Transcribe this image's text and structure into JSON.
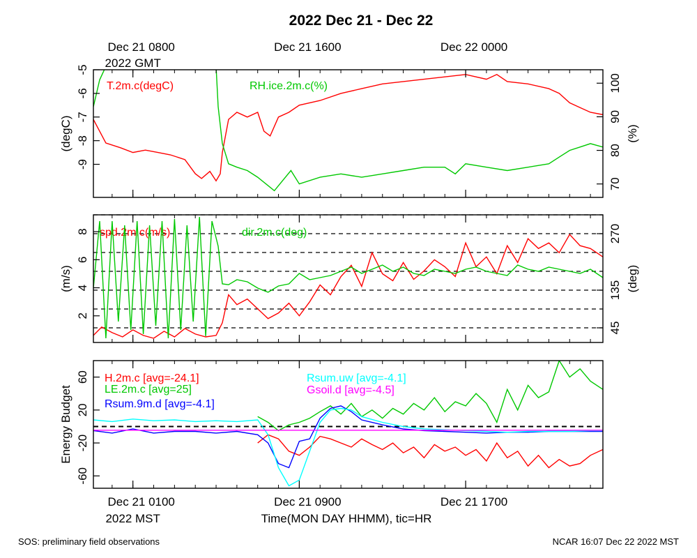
{
  "title": "2022 Dec 21 - Dec 22",
  "top_time_axis": {
    "ticks": [
      {
        "line1": "Dec 21 0800",
        "line2": "2022 GMT",
        "hour": 0
      },
      {
        "line1": "Dec 21 1600",
        "line2": "",
        "hour": 8
      },
      {
        "line1": "Dec 22 0000",
        "line2": "",
        "hour": 16
      }
    ]
  },
  "bottom_time_axis": {
    "ticks": [
      {
        "line1": "Dec 21 0100",
        "line2": "2022 MST",
        "hour": 0
      },
      {
        "line1": "Dec 21 0900",
        "line2": "",
        "hour": 8
      },
      {
        "line1": "Dec 21 1700",
        "line2": "",
        "hour": 16
      }
    ],
    "xlabel": "Time(MON DAY HHMM), tic=HR"
  },
  "footer": {
    "left": "SOS: preliminary field observations",
    "right": "NCAR 16:07 Dec 22 2022 MST"
  },
  "colors": {
    "red": "#ff0000",
    "green": "#00c800",
    "blue": "#0000ff",
    "cyan": "#00ffff",
    "magenta": "#ff00ff",
    "black": "#000000"
  },
  "chart_data": [
    {
      "type": "line",
      "panel": "temperature-humidity",
      "xlim_hours": [
        -1.9,
        22.6
      ],
      "left_axis": {
        "ylabel": "(degC)",
        "ylim": [
          -10.4,
          -5
        ],
        "ticks": [
          -9,
          -8,
          -7,
          -6,
          -5
        ]
      },
      "right_axis": {
        "ylabel": "(%)",
        "ylim": [
          66,
          104
        ],
        "ticks": [
          70,
          80,
          90,
          100
        ]
      },
      "series": [
        {
          "name": "T.2m.c(degC)",
          "axis": "left",
          "color": "red",
          "x": [
            -1.9,
            -1.3,
            -0.6,
            0,
            0.6,
            1.2,
            1.8,
            2.5,
            3.0,
            3.3,
            3.7,
            4.0,
            4.2,
            4.3,
            4.6,
            5.0,
            5.5,
            6.0,
            6.3,
            6.6,
            7.0,
            7.5,
            8.0,
            9.0,
            10.0,
            11.0,
            12.0,
            13.0,
            14.0,
            15.0,
            16.0,
            17.0,
            17.5,
            18.0,
            19.0,
            20.0,
            20.5,
            21.0,
            21.5,
            22.0,
            22.6
          ],
          "y": [
            -7.1,
            -8.1,
            -8.3,
            -8.5,
            -8.4,
            -8.5,
            -8.6,
            -8.8,
            -9.4,
            -9.6,
            -9.3,
            -9.7,
            -9.4,
            -8.5,
            -7.1,
            -6.8,
            -7.0,
            -6.8,
            -7.6,
            -7.8,
            -7.0,
            -6.8,
            -6.5,
            -6.3,
            -6.0,
            -5.8,
            -5.6,
            -5.5,
            -5.4,
            -5.3,
            -5.2,
            -5.4,
            -5.2,
            -5.5,
            -5.6,
            -5.8,
            -6.0,
            -6.4,
            -6.6,
            -6.8,
            -6.9
          ]
        },
        {
          "name": "RH.ice.2m.c(%)",
          "axis": "right",
          "color": "green",
          "x": [
            -1.9,
            -1.6,
            -1.3,
            -1.0,
            0,
            1.0,
            2.0,
            3.0,
            4.0,
            4.1,
            4.3,
            4.6,
            5.0,
            5.5,
            6.0,
            6.4,
            6.8,
            7.2,
            7.6,
            8.0,
            9.0,
            10.0,
            11.0,
            12.0,
            13.0,
            14.0,
            15.0,
            15.5,
            16.0,
            17.0,
            18.0,
            19.0,
            20.0,
            20.5,
            21.0,
            21.5,
            22.0,
            22.6
          ],
          "y": [
            93,
            101,
            105,
            105,
            105,
            105,
            105,
            105,
            105,
            93,
            82,
            76,
            75,
            74,
            72,
            70,
            68,
            71,
            74,
            70,
            72,
            73,
            72,
            73,
            74,
            75,
            75,
            73,
            76,
            75,
            74,
            75,
            76,
            78,
            80,
            81,
            82,
            81
          ]
        }
      ]
    },
    {
      "type": "line",
      "panel": "wind",
      "xlim_hours": [
        -1.9,
        22.6
      ],
      "left_axis": {
        "ylabel": "(m/s)",
        "ylim": [
          0.1,
          9.2
        ],
        "ticks": [
          2,
          4,
          6,
          8
        ]
      },
      "right_axis": {
        "ylabel": "(deg)",
        "ylim": [
          10,
          315
        ],
        "ticks": [
          45,
          135,
          270
        ]
      },
      "hlines_right_units": [
        45,
        90,
        135,
        180,
        225,
        270,
        315
      ],
      "series": [
        {
          "name": "spd.2m.c(m/s)",
          "axis": "left",
          "color": "red",
          "x": [
            -1.9,
            -1.5,
            -1.0,
            -0.5,
            0,
            0.5,
            1.0,
            1.5,
            2.0,
            2.5,
            3.0,
            3.5,
            4.0,
            4.3,
            4.6,
            5.0,
            5.5,
            6.0,
            6.5,
            7.0,
            7.5,
            8.0,
            8.5,
            9.0,
            9.5,
            10.0,
            10.5,
            11.0,
            11.5,
            12.0,
            12.5,
            13.0,
            13.5,
            14.0,
            14.5,
            15.0,
            15.5,
            16.0,
            16.5,
            17.0,
            17.5,
            18.0,
            18.5,
            19.0,
            19.5,
            20.0,
            20.5,
            21.0,
            21.5,
            22.0,
            22.6
          ],
          "y": [
            0.6,
            1.2,
            0.8,
            0.5,
            1.0,
            0.6,
            0.4,
            0.9,
            0.5,
            1.1,
            0.7,
            0.5,
            0.6,
            1.5,
            3.5,
            2.8,
            3.2,
            2.5,
            1.8,
            2.2,
            2.9,
            2.0,
            3.0,
            4.2,
            3.5,
            4.8,
            5.6,
            4.1,
            6.5,
            5.0,
            4.5,
            5.8,
            4.6,
            5.2,
            6.0,
            5.5,
            4.8,
            7.2,
            5.5,
            6.2,
            5.0,
            7.0,
            5.8,
            7.5,
            6.8,
            7.2,
            6.5,
            7.8,
            7.0,
            6.8,
            6.2
          ]
        },
        {
          "name": "dir.2m.c(deg)",
          "axis": "right",
          "color": "green",
          "x": [
            -1.9,
            -1.6,
            -1.3,
            -1.0,
            -0.7,
            -0.4,
            -0.1,
            0.2,
            0.5,
            0.8,
            1.1,
            1.4,
            1.7,
            2.0,
            2.3,
            2.6,
            2.9,
            3.2,
            3.5,
            3.8,
            4.1,
            4.3,
            4.6,
            5.0,
            5.5,
            6.0,
            6.5,
            7.0,
            7.5,
            8.0,
            8.5,
            9.0,
            9.5,
            10.0,
            10.5,
            11.0,
            11.5,
            12.0,
            12.5,
            13.0,
            13.5,
            14.0,
            14.5,
            15.0,
            15.5,
            16.0,
            16.5,
            17.0,
            17.5,
            18.0,
            18.5,
            19.0,
            19.5,
            20.0,
            20.5,
            21.0,
            21.5,
            22.0,
            22.6
          ],
          "y": [
            140,
            300,
            20,
            300,
            60,
            290,
            40,
            300,
            30,
            290,
            50,
            300,
            20,
            305,
            40,
            290,
            60,
            310,
            25,
            300,
            240,
            150,
            148,
            160,
            155,
            140,
            130,
            145,
            150,
            175,
            160,
            165,
            170,
            180,
            190,
            175,
            185,
            195,
            180,
            190,
            175,
            170,
            185,
            180,
            175,
            185,
            190,
            180,
            175,
            170,
            195,
            185,
            180,
            190,
            185,
            180,
            175,
            185,
            165
          ]
        }
      ]
    },
    {
      "type": "line",
      "panel": "energy-budget",
      "xlim_hours": [
        -1.9,
        22.6
      ],
      "left_axis": {
        "ylabel": "Energy Budget",
        "ylim": [
          -75,
          80
        ],
        "ticks": [
          -60,
          -20,
          20,
          60
        ]
      },
      "hline_zero": 0,
      "series": [
        {
          "name": "H.2m.c [avg=-24.1]",
          "color": "red",
          "x": [
            6.0,
            6.5,
            7.0,
            7.5,
            8.0,
            8.5,
            9.0,
            9.5,
            10.0,
            10.5,
            11.0,
            11.5,
            12.0,
            12.5,
            13.0,
            13.5,
            14.0,
            14.5,
            15.0,
            15.5,
            16.0,
            16.5,
            17.0,
            17.5,
            18.0,
            18.5,
            19.0,
            19.5,
            20.0,
            20.5,
            21.0,
            21.5,
            22.0,
            22.6
          ],
          "y": [
            -20,
            -10,
            -15,
            -30,
            -35,
            -25,
            -12,
            -15,
            -20,
            -25,
            -15,
            -22,
            -28,
            -20,
            -32,
            -25,
            -38,
            -22,
            -30,
            -25,
            -35,
            -28,
            -42,
            -20,
            -38,
            -30,
            -48,
            -35,
            -50,
            -40,
            -48,
            -45,
            -35,
            -28
          ]
        },
        {
          "name": "LE.2m.c [avg=25]",
          "color": "green",
          "x": [
            6.0,
            6.5,
            7.0,
            7.5,
            8.0,
            8.5,
            9.0,
            9.5,
            10.0,
            10.5,
            11.0,
            11.5,
            12.0,
            12.5,
            13.0,
            13.5,
            14.0,
            14.5,
            15.0,
            15.5,
            16.0,
            16.5,
            17.0,
            17.5,
            18.0,
            18.5,
            19.0,
            19.5,
            20.0,
            20.5,
            21.0,
            21.5,
            22.0,
            22.6
          ],
          "y": [
            12,
            5,
            -5,
            2,
            5,
            10,
            18,
            25,
            15,
            28,
            12,
            20,
            10,
            22,
            15,
            28,
            20,
            35,
            18,
            30,
            25,
            40,
            28,
            5,
            45,
            20,
            50,
            35,
            42,
            80,
            60,
            70,
            55,
            45
          ]
        },
        {
          "name": "Rsum.9m.d [avg=-4.1]",
          "color": "blue",
          "x": [
            -1.9,
            -1.0,
            0,
            1.0,
            2.0,
            3.0,
            4.0,
            5.0,
            6.0,
            6.5,
            7.0,
            7.5,
            8.0,
            8.5,
            9.0,
            9.5,
            10.0,
            10.5,
            11.0,
            12.0,
            13.0,
            14.0,
            15.0,
            16.0,
            17.0,
            18.0,
            19.0,
            20.0,
            21.0,
            22.0,
            22.6
          ],
          "y": [
            -5,
            -8,
            -3,
            -8,
            -6,
            -6,
            -8,
            -6,
            -10,
            -20,
            -45,
            -50,
            -18,
            -15,
            10,
            22,
            25,
            18,
            8,
            2,
            -3,
            -5,
            -6,
            -7,
            -8,
            -7,
            -7,
            -6,
            -6,
            -6,
            -6
          ]
        },
        {
          "name": "Rsum.uw [avg=-4.1]",
          "color": "cyan",
          "x": [
            -1.9,
            -1.0,
            0,
            1.0,
            2.0,
            3.0,
            4.0,
            5.0,
            6.0,
            6.5,
            7.0,
            7.5,
            8.0,
            8.5,
            9.0,
            9.5,
            10.0,
            10.5,
            11.0,
            12.0,
            13.0,
            14.0,
            15.0,
            16.0,
            17.0,
            18.0,
            19.0,
            20.0,
            21.0,
            22.0,
            22.6
          ],
          "y": [
            8,
            6,
            9,
            7,
            8,
            6,
            7,
            6,
            8,
            -10,
            -50,
            -72,
            -65,
            -30,
            5,
            20,
            22,
            20,
            12,
            5,
            0,
            -3,
            -4,
            -5,
            -6,
            -7,
            -6,
            -6,
            -6,
            -5,
            -5
          ]
        },
        {
          "name": "Gsoil.d [avg=-4.5]",
          "color": "magenta",
          "x": [
            -1.9,
            22.6
          ],
          "y": [
            -4.5,
            -4.5
          ]
        }
      ]
    }
  ]
}
